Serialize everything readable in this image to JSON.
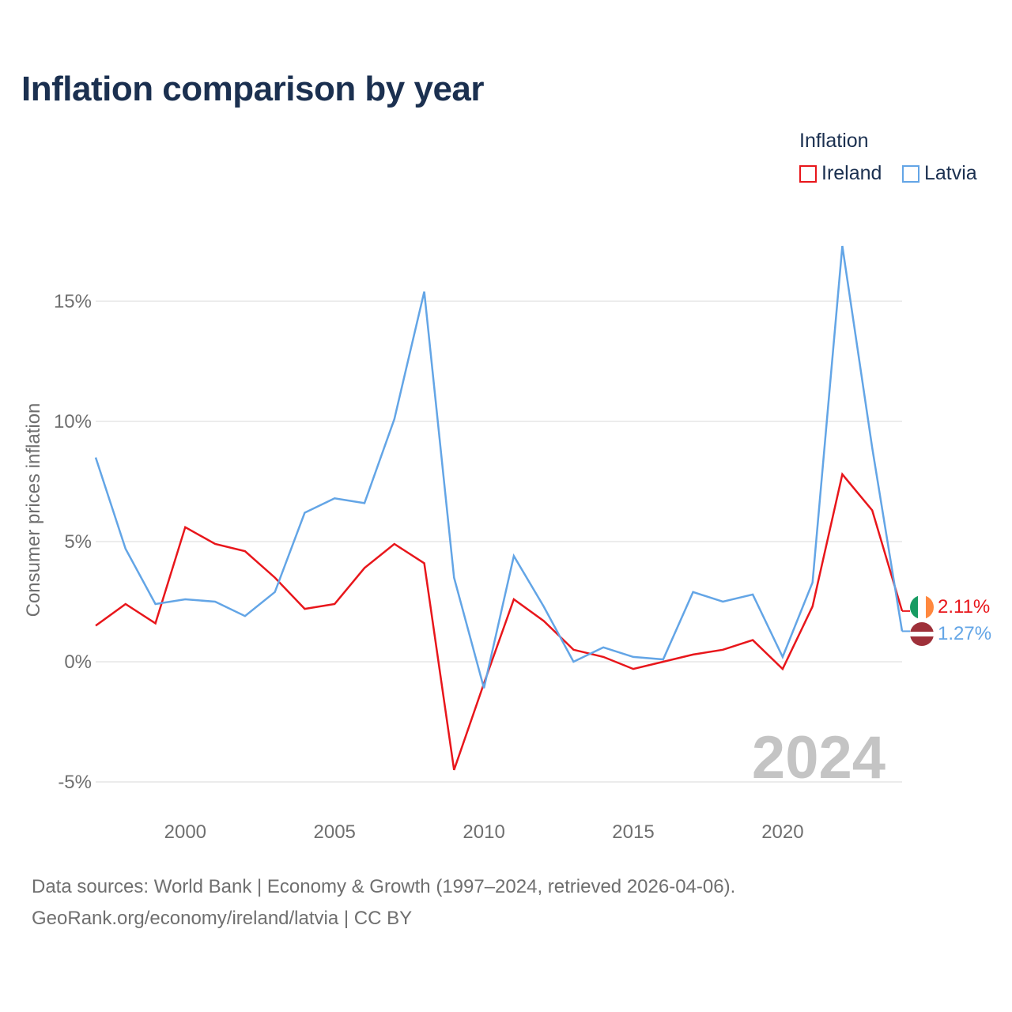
{
  "title": "Inflation comparison by year",
  "legend": {
    "title": "Inflation",
    "items": [
      {
        "label": "Ireland",
        "color": "#e8161b"
      },
      {
        "label": "Latvia",
        "color": "#63a5e6"
      }
    ]
  },
  "chart_data": {
    "type": "line",
    "title": "Inflation comparison by year",
    "xlabel": "",
    "ylabel": "Consumer prices inflation",
    "xlim": [
      1997,
      2024
    ],
    "ylim": [
      -5,
      17.5
    ],
    "x": [
      1997,
      1998,
      1999,
      2000,
      2001,
      2002,
      2003,
      2004,
      2005,
      2006,
      2007,
      2008,
      2009,
      2010,
      2011,
      2012,
      2013,
      2014,
      2015,
      2016,
      2017,
      2018,
      2019,
      2020,
      2021,
      2022,
      2023,
      2024
    ],
    "x_ticks": [
      2000,
      2005,
      2010,
      2015,
      2020
    ],
    "y_ticks": [
      {
        "value": 15,
        "label": "15%"
      },
      {
        "value": 10,
        "label": "10%"
      },
      {
        "value": 5,
        "label": "5%"
      },
      {
        "value": 0,
        "label": "0%"
      },
      {
        "value": -5,
        "label": "-5%"
      }
    ],
    "grid": true,
    "legend_position": "top-right",
    "series": [
      {
        "name": "Ireland",
        "color": "#e8161b",
        "values": [
          1.5,
          2.4,
          1.6,
          5.6,
          4.9,
          4.6,
          3.5,
          2.2,
          2.4,
          3.9,
          4.9,
          4.1,
          -4.5,
          -0.9,
          2.6,
          1.7,
          0.5,
          0.2,
          -0.3,
          0.0,
          0.3,
          0.5,
          0.9,
          -0.3,
          2.3,
          7.8,
          6.3,
          2.11
        ],
        "end_label": "2.11%"
      },
      {
        "name": "Latvia",
        "color": "#63a5e6",
        "values": [
          8.5,
          4.7,
          2.4,
          2.6,
          2.5,
          1.9,
          2.9,
          6.2,
          6.8,
          6.6,
          10.1,
          15.4,
          3.5,
          -1.1,
          4.4,
          2.3,
          0.0,
          0.6,
          0.2,
          0.1,
          2.9,
          2.5,
          2.8,
          0.2,
          3.3,
          17.3,
          8.9,
          1.27
        ],
        "end_label": "1.27%"
      }
    ],
    "annotation": "2024"
  },
  "source": {
    "line1": "Data sources: World Bank | Economy & Growth (1997–2024, retrieved 2026-04-06).",
    "line2": "GeoRank.org/economy/ireland/latvia | CC BY"
  }
}
